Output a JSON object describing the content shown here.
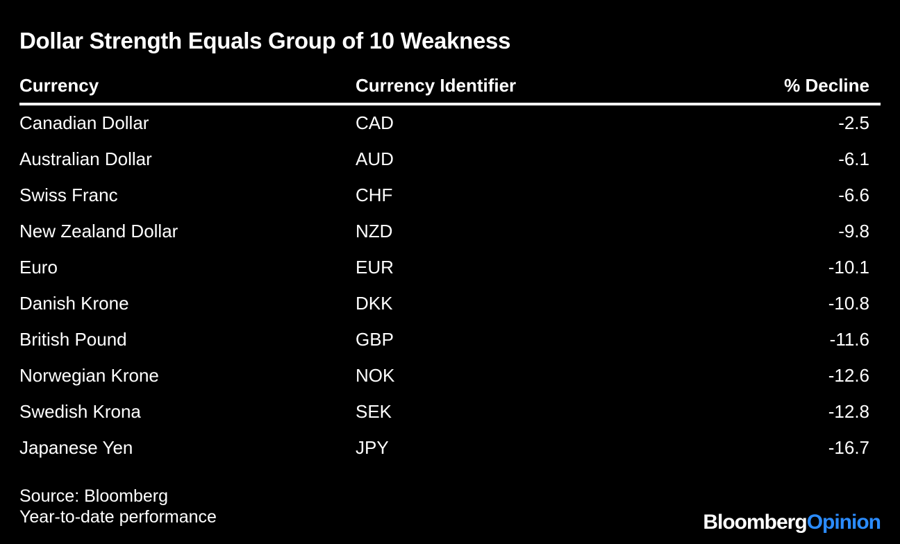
{
  "chart_data": {
    "type": "table",
    "title": "Dollar Strength Equals Group of 10 Weakness",
    "columns": [
      "Currency",
      "Currency Identifier",
      "% Decline"
    ],
    "rows": [
      {
        "currency": "Canadian Dollar",
        "code": "CAD",
        "decline": "-2.5"
      },
      {
        "currency": "Australian Dollar",
        "code": "AUD",
        "decline": "-6.1"
      },
      {
        "currency": "Swiss Franc",
        "code": "CHF",
        "decline": "-6.6"
      },
      {
        "currency": "New Zealand Dollar",
        "code": "NZD",
        "decline": "-9.8"
      },
      {
        "currency": "Euro",
        "code": "EUR",
        "decline": "-10.1"
      },
      {
        "currency": "Danish Krone",
        "code": "DKK",
        "decline": "-10.8"
      },
      {
        "currency": "British Pound",
        "code": "GBP",
        "decline": "-11.6"
      },
      {
        "currency": "Norwegian Krone",
        "code": "NOK",
        "decline": "-12.6"
      },
      {
        "currency": "Swedish Krona",
        "code": "SEK",
        "decline": "-12.8"
      },
      {
        "currency": "Japanese Yen",
        "code": "JPY",
        "decline": "-16.7"
      }
    ]
  },
  "footer": {
    "source": "Source: Bloomberg",
    "note": "Year-to-date performance"
  },
  "logo": {
    "part1": "Bloomberg",
    "part2": "Opinion",
    "accent_color": "#2b8cff"
  }
}
